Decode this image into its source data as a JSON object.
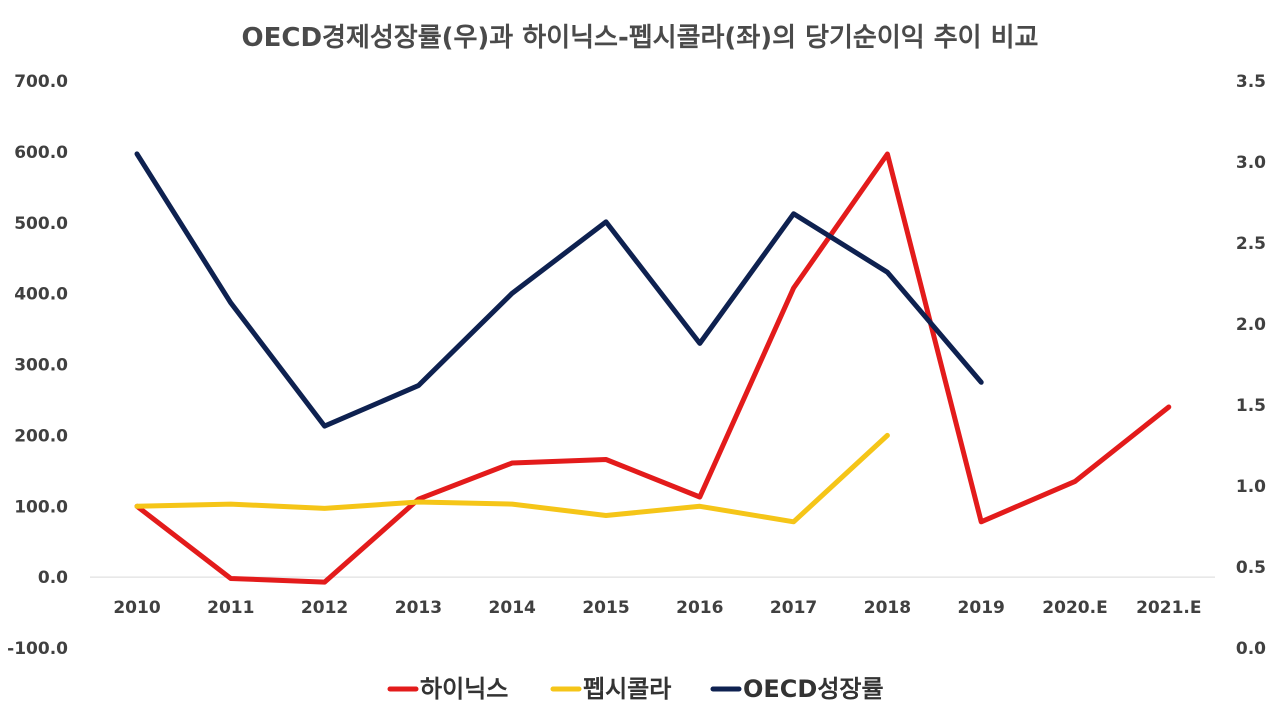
{
  "chart_data": {
    "type": "line",
    "title": "OECD경제성장률(우)과 하이닉스-펩시콜라(좌)의 당기순이익 추이 비교",
    "categories": [
      "2010",
      "2011",
      "2012",
      "2013",
      "2014",
      "2015",
      "2016",
      "2017",
      "2018",
      "2019",
      "2020.E",
      "2021.E"
    ],
    "y_left": {
      "ylim": [
        -100,
        700
      ],
      "ticks": [
        "-100.0",
        "0.0",
        "100.0",
        "200.0",
        "300.0",
        "400.0",
        "500.0",
        "600.0",
        "700.0"
      ]
    },
    "y_right": {
      "ylim": [
        0,
        3.5
      ],
      "ticks": [
        "0.0",
        "0.5",
        "1.0",
        "1.5",
        "2.0",
        "2.5",
        "3.0",
        "3.5"
      ]
    },
    "series": [
      {
        "name": "하이닉스",
        "axis": "left",
        "color": "#e31b1b",
        "values": [
          100,
          -2,
          -7,
          110,
          161,
          166,
          113,
          408,
          597,
          78,
          135,
          240
        ]
      },
      {
        "name": "펩시콜라",
        "axis": "left",
        "color": "#f5c518",
        "values": [
          100,
          103,
          97,
          106,
          103,
          87,
          100,
          78,
          200,
          null,
          null,
          null
        ]
      },
      {
        "name": "OECD성장률",
        "axis": "right",
        "color": "#0e2150",
        "values": [
          3.05,
          2.13,
          1.37,
          1.62,
          2.19,
          2.63,
          1.88,
          2.68,
          2.32,
          1.64,
          null,
          null
        ]
      }
    ],
    "legend": "bottom",
    "grid": false
  }
}
